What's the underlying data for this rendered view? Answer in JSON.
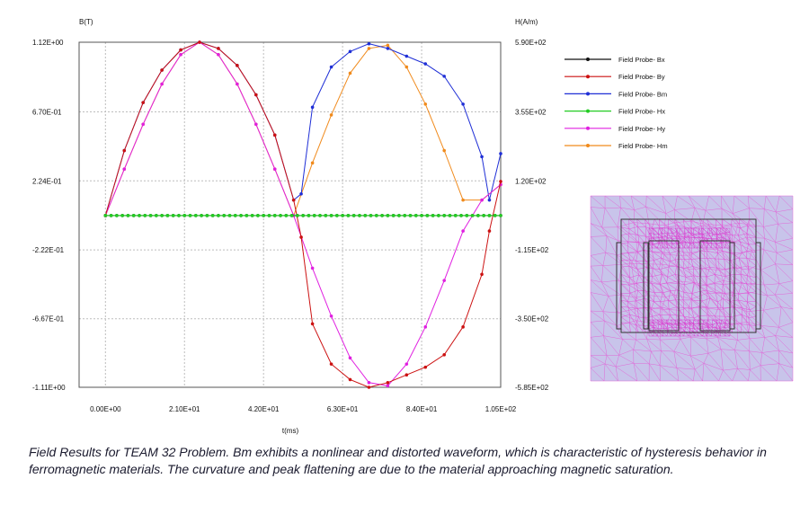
{
  "caption": "Field Results for TEAM 32 Problem. Bm exhibits a nonlinear and distorted waveform, which is characteristic of hysteresis behavior in ferromagnetic materials. The curvature and peak flattening are due to the material approaching magnetic saturation.",
  "inset": {
    "type": "mesh-image",
    "description_icon": "mesh-image-icon"
  },
  "chart_data": {
    "type": "line",
    "xlabel": "t(ms)",
    "ylabel_left": "B(T)",
    "ylabel_right": "H(A/m)",
    "xlim": [
      -7,
      105
    ],
    "ylim_left": [
      -1.11,
      1.12
    ],
    "ylim_right": [
      -585,
      590
    ],
    "x_ticks": [
      0,
      21,
      42,
      63,
      84,
      105
    ],
    "x_tick_labels": [
      "0.00E+00",
      "2.10E+01",
      "4.20E+01",
      "6.30E+01",
      "8.40E+01",
      "1.05E+02"
    ],
    "y_left_ticks": [
      1.12,
      0.67,
      0.224,
      -0.222,
      -0.667,
      -1.11
    ],
    "y_left_tick_labels": [
      "1.12E+00",
      "6.70E-01",
      "2.24E-01",
      "-2.22E-01",
      "-6.67E-01",
      "-1.11E+00"
    ],
    "y_right_tick_labels": [
      "5.90E+02",
      "3.55E+02",
      "1.20E+02",
      "-1.15E+02",
      "-3.50E+02",
      "-5.85E+02"
    ],
    "grid": true,
    "legend_position": "right",
    "series": [
      {
        "name": "Field Probe- Bx",
        "color": "#111111",
        "axis": "left",
        "x": [
          0,
          105
        ],
        "y": [
          0,
          0
        ]
      },
      {
        "name": "Field Probe- By",
        "color": "#cc1111",
        "axis": "left",
        "x": [
          0,
          5,
          10,
          15,
          20,
          25,
          30,
          35,
          40,
          45,
          50,
          52,
          55,
          60,
          65,
          70,
          75,
          80,
          85,
          90,
          95,
          100,
          102,
          105
        ],
        "y": [
          0.0,
          0.42,
          0.73,
          0.94,
          1.07,
          1.12,
          1.08,
          0.97,
          0.78,
          0.52,
          0.1,
          -0.14,
          -0.7,
          -0.96,
          -1.06,
          -1.11,
          -1.08,
          -1.03,
          -0.98,
          -0.9,
          -0.72,
          -0.38,
          -0.1,
          0.22
        ]
      },
      {
        "name": "Field Probe- Bm",
        "color": "#1f2fd6",
        "axis": "left",
        "x": [
          0,
          5,
          10,
          15,
          20,
          25,
          30,
          35,
          40,
          45,
          50,
          52,
          55,
          60,
          65,
          70,
          75,
          80,
          85,
          90,
          95,
          100,
          102,
          105
        ],
        "y": [
          0.0,
          0.42,
          0.73,
          0.94,
          1.07,
          1.12,
          1.08,
          0.97,
          0.78,
          0.52,
          0.1,
          0.14,
          0.7,
          0.96,
          1.06,
          1.11,
          1.08,
          1.03,
          0.98,
          0.9,
          0.72,
          0.38,
          0.1,
          0.4
        ]
      },
      {
        "name": "Field Probe- Hx",
        "color": "#22cc22",
        "axis": "left",
        "x": [
          0,
          105
        ],
        "y": [
          0,
          0
        ]
      },
      {
        "name": "Field Probe- Hy",
        "color": "#e020e0",
        "axis": "left",
        "x": [
          0,
          5,
          10,
          15,
          20,
          25,
          30,
          35,
          40,
          45,
          50,
          55,
          60,
          65,
          70,
          75,
          80,
          85,
          90,
          95,
          100,
          105
        ],
        "y": [
          0.0,
          0.3,
          0.59,
          0.85,
          1.04,
          1.12,
          1.04,
          0.85,
          0.59,
          0.3,
          0.0,
          -0.34,
          -0.65,
          -0.92,
          -1.08,
          -1.1,
          -0.96,
          -0.72,
          -0.42,
          -0.1,
          0.1,
          0.2
        ]
      },
      {
        "name": "Field Probe- Hm",
        "color": "#f08a1c",
        "axis": "left",
        "x": [
          0,
          5,
          10,
          15,
          20,
          25,
          30,
          35,
          40,
          45,
          50,
          55,
          60,
          65,
          70,
          75,
          80,
          85,
          90,
          95,
          100,
          105
        ],
        "y": [
          0.0,
          0.3,
          0.59,
          0.85,
          1.04,
          1.12,
          1.04,
          0.85,
          0.59,
          0.3,
          0.0,
          0.34,
          0.65,
          0.92,
          1.08,
          1.1,
          0.96,
          0.72,
          0.42,
          0.1,
          0.1,
          0.2
        ]
      }
    ]
  }
}
